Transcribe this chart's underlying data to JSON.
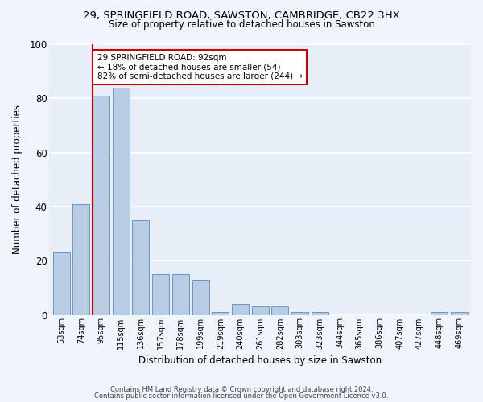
{
  "title1": "29, SPRINGFIELD ROAD, SAWSTON, CAMBRIDGE, CB22 3HX",
  "title2": "Size of property relative to detached houses in Sawston",
  "xlabel": "Distribution of detached houses by size in Sawston",
  "ylabel": "Number of detached properties",
  "categories": [
    "53sqm",
    "74sqm",
    "95sqm",
    "115sqm",
    "136sqm",
    "157sqm",
    "178sqm",
    "199sqm",
    "219sqm",
    "240sqm",
    "261sqm",
    "282sqm",
    "303sqm",
    "323sqm",
    "344sqm",
    "365sqm",
    "386sqm",
    "407sqm",
    "427sqm",
    "448sqm",
    "469sqm"
  ],
  "values": [
    23,
    41,
    81,
    84,
    35,
    15,
    15,
    13,
    1,
    4,
    3,
    3,
    1,
    1,
    0,
    0,
    0,
    0,
    0,
    1,
    1
  ],
  "bar_color": "#b8cce4",
  "bar_edge_color": "#5a8abf",
  "background_color": "#e8eef8",
  "grid_color": "#ffffff",
  "annotation_line_color": "#cc0000",
  "annotation_box_color": "#cc0000",
  "annotation_text": "29 SPRINGFIELD ROAD: 92sqm\n← 18% of detached houses are smaller (54)\n82% of semi-detached houses are larger (244) →",
  "footer1": "Contains HM Land Registry data © Crown copyright and database right 2024.",
  "footer2": "Contains public sector information licensed under the Open Government Licence v3.0.",
  "ylim": [
    0,
    100
  ],
  "yticks": [
    0,
    20,
    40,
    60,
    80,
    100
  ],
  "fig_bg_color": "#f0f4fc"
}
